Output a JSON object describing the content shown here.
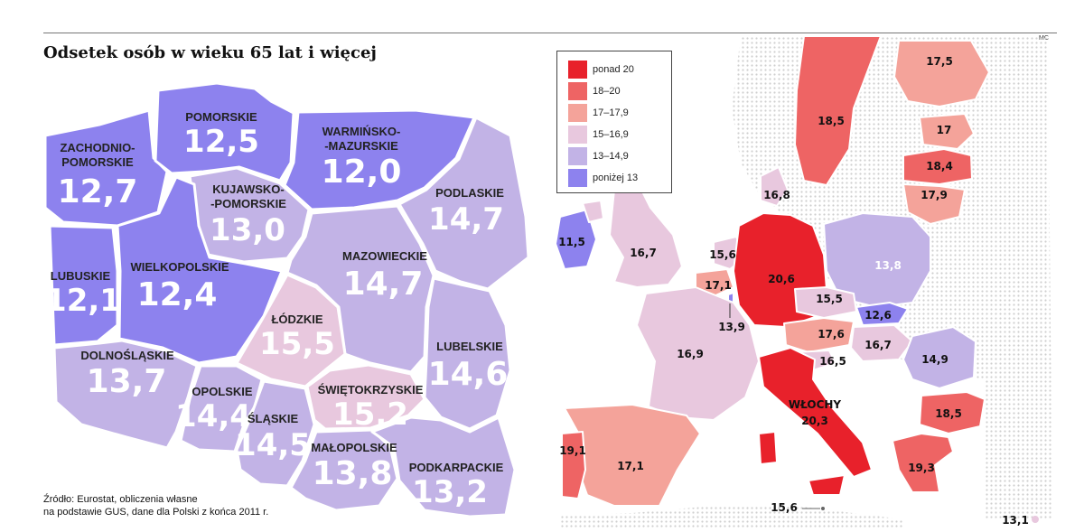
{
  "title": "Odsetek osób w wieku 65 lat i więcej",
  "credit": "MC",
  "source": {
    "line1": "Źródło: Eurostat, obliczenia własne",
    "line2": "na podstawie GUS, dane dla Polski z końca 2011 r."
  },
  "colors": {
    "above_20": "#e8212b",
    "c18_20": "#ee6464",
    "c17_17_9": "#f4a39a",
    "c15_16_9": "#e8c8de",
    "c13_14_9": "#c2b3e6",
    "below_13": "#8d82ee",
    "dots": "#cfcfcf"
  },
  "legend": [
    {
      "label": "ponad 20",
      "color": "#e8212b"
    },
    {
      "label": "18–20",
      "color": "#ee6464"
    },
    {
      "label": "17–17,9",
      "color": "#f4a39a"
    },
    {
      "label": "15–16,9",
      "color": "#e8c8de"
    },
    {
      "label": "13–14,9",
      "color": "#c2b3e6"
    },
    {
      "label": "poniżej 13",
      "color": "#8d82ee"
    }
  ],
  "voivodeships": {
    "zachodniopomorskie": {
      "label1": "ZACHODNIO-",
      "label2": "POMORSKIE",
      "value": "12,7",
      "color": "#8d82ee"
    },
    "pomorskie": {
      "label1": "POMORSKIE",
      "value": "12,5",
      "color": "#8d82ee"
    },
    "warminsko": {
      "label1": "WARMIŃSKO-",
      "label2": "-MAZURSKIE",
      "value": "12,0",
      "color": "#8d82ee"
    },
    "podlaskie": {
      "label1": "PODLASKIE",
      "value": "14,7",
      "color": "#c2b3e6"
    },
    "kujawsko": {
      "label1": "KUJAWSKO-",
      "label2": "-POMORSKIE",
      "value": "13,0",
      "color": "#c2b3e6"
    },
    "lubuskie": {
      "label1": "LUBUSKIE",
      "value": "12,1",
      "color": "#8d82ee"
    },
    "wielkopolskie": {
      "label1": "WIELKOPOLSKIE",
      "value": "12,4",
      "color": "#8d82ee"
    },
    "mazowieckie": {
      "label1": "MAZOWIECKIE",
      "value": "14,7",
      "color": "#c2b3e6"
    },
    "lodzkie": {
      "label1": "ŁÓDZKIE",
      "value": "15,5",
      "color": "#e8c8de"
    },
    "lubelskie": {
      "label1": "LUBELSKIE",
      "value": "14,6",
      "color": "#c2b3e6"
    },
    "dolnoslaskie": {
      "label1": "DOLNOŚLĄSKIE",
      "value": "13,7",
      "color": "#c2b3e6"
    },
    "opolskie": {
      "label1": "OPOLSKIE",
      "value": "14,4",
      "color": "#c2b3e6"
    },
    "slaskie": {
      "label1": "ŚLĄSKIE",
      "value": "14,5",
      "color": "#c2b3e6"
    },
    "swietokrzyskie": {
      "label1": "ŚWIĘTOKRZYSKIE",
      "value": "15,2",
      "color": "#e8c8de"
    },
    "malopolskie": {
      "label1": "MAŁOPOLSKIE",
      "value": "13,8",
      "color": "#c2b3e6"
    },
    "podkarpackie": {
      "label1": "PODKARPACKIE",
      "value": "13,2",
      "color": "#c2b3e6"
    }
  },
  "europe": {
    "sweden": "18,5",
    "finland": "17,5",
    "estonia": "17",
    "latvia": "18,4",
    "lithuania": "17,9",
    "denmark": "16,8",
    "ireland": "11,5",
    "uk": "16,7",
    "netherlands": "15,6",
    "belgium": "17,1",
    "luxembourg": "13,9",
    "germany": "20,6",
    "poland": "13,8",
    "czechia": "15,5",
    "slovakia": "12,6",
    "austria": "17,6",
    "hungary": "16,7",
    "slovenia": "16,5",
    "romania": "14,9",
    "france": "16,9",
    "italy_name": "WŁOCHY",
    "italy": "20,3",
    "bulgaria": "18,5",
    "portugal": "19,1",
    "spain": "17,1",
    "greece": "19,3",
    "malta": "15,6",
    "cyprus": "13,1"
  }
}
